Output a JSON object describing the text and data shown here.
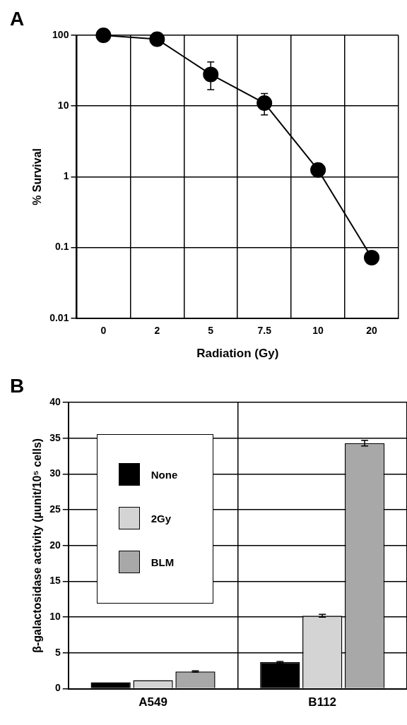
{
  "chart_data": [
    {
      "type": "line",
      "xlabel": "Radiation (Gy)",
      "ylabel": "% Survival",
      "annotations": [
        "A"
      ],
      "categories": [
        "0",
        "2",
        "5",
        "7.5",
        "10",
        "20"
      ],
      "log": "y",
      "ylim": [
        0.01,
        100
      ],
      "yticks": [
        0.01,
        0.1,
        1,
        10,
        100
      ],
      "grid": true,
      "marker": "circle",
      "line_style": "solid",
      "legend": false,
      "series": [
        {
          "color": "#000000",
          "values": [
            100,
            88,
            28,
            11,
            1.25,
            0.072
          ],
          "errors": [
            null,
            null,
            [
              17,
              42
            ],
            [
              7.5,
              15
            ],
            null,
            null
          ]
        }
      ]
    },
    {
      "type": "bar",
      "ylabel": "β-galactosidase activity (µunit/10⁵ cells)",
      "annotations": [
        "B"
      ],
      "categories": [
        "A549",
        "B112"
      ],
      "ylim": [
        0,
        40
      ],
      "yticks": [
        0,
        5,
        10,
        15,
        20,
        25,
        30,
        35,
        40
      ],
      "grid": true,
      "legend": "top left",
      "series": [
        {
          "name": "None",
          "color": "#000000",
          "values": [
            0.9,
            3.7
          ],
          "errors": [
            null,
            0.1
          ]
        },
        {
          "name": "2Gy",
          "color": "#d4d4d4",
          "values": [
            1.2,
            10.2
          ],
          "errors": [
            null,
            0.2
          ]
        },
        {
          "name": "BLM",
          "color": "#a8a8a8",
          "values": [
            2.4,
            34.3
          ],
          "errors": [
            0.1,
            0.4
          ]
        }
      ]
    }
  ]
}
